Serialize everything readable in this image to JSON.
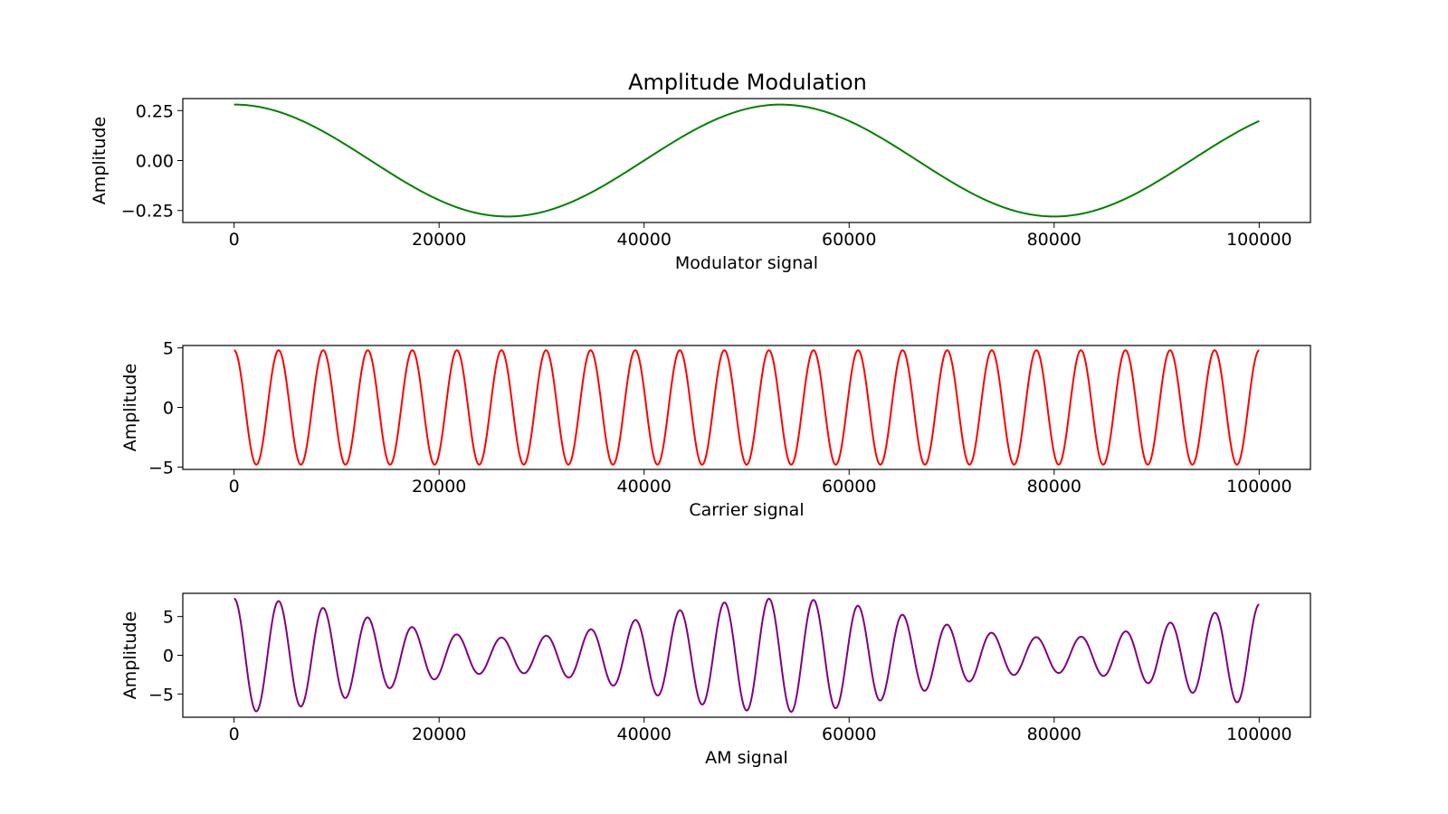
{
  "figure": {
    "title": "Amplitude Modulation"
  },
  "chart_data": [
    {
      "type": "line",
      "xlabel": "Modulator signal",
      "ylabel": "Amplitude",
      "xlim": [
        -5000,
        105000
      ],
      "ylim": [
        -0.31,
        0.31
      ],
      "xticks": [
        0,
        20000,
        40000,
        60000,
        80000,
        100000
      ],
      "xtick_labels": [
        "0",
        "20000",
        "40000",
        "60000",
        "80000",
        "100000"
      ],
      "yticks": [
        0.25,
        0.0,
        -0.25
      ],
      "ytick_labels": [
        "0.25",
        "0.00",
        "−0.25"
      ],
      "color": "#008000",
      "grid": false,
      "series": [
        {
          "x_start": 0,
          "x_end": 100000,
          "amplitude": 0.28,
          "period": 53333,
          "phase": "cosine"
        }
      ]
    },
    {
      "type": "line",
      "xlabel": "Carrier signal",
      "ylabel": "Amplitude",
      "xlim": [
        -5000,
        105000
      ],
      "ylim": [
        -5.2,
        5.2
      ],
      "xticks": [
        0,
        20000,
        40000,
        60000,
        80000,
        100000
      ],
      "xtick_labels": [
        "0",
        "20000",
        "40000",
        "60000",
        "80000",
        "100000"
      ],
      "yticks": [
        5,
        0,
        -5
      ],
      "ytick_labels": [
        "5",
        "0",
        "−5"
      ],
      "color": "#ff0000",
      "grid": false,
      "series": [
        {
          "x_start": 0,
          "x_end": 100000,
          "amplitude": 4.8,
          "period": 4348,
          "phase": "cosine"
        }
      ]
    },
    {
      "type": "line",
      "xlabel": "AM signal",
      "ylabel": "Amplitude",
      "xlim": [
        -5000,
        105000
      ],
      "ylim": [
        -8.0,
        8.0
      ],
      "xticks": [
        0,
        20000,
        40000,
        60000,
        80000,
        100000
      ],
      "xtick_labels": [
        "0",
        "20000",
        "40000",
        "60000",
        "80000",
        "100000"
      ],
      "yticks": [
        5,
        0,
        -5
      ],
      "ytick_labels": [
        "5",
        "0",
        "−5"
      ],
      "color": "#800080",
      "grid": false,
      "series": [
        {
          "x_start": 0,
          "x_end": 100000,
          "carrier_amplitude": 4.8,
          "carrier_period": 4348,
          "modulator_amplitude": 0.28,
          "modulator_period": 53333,
          "modulation_scale": 9.0,
          "formula": "(carrier_amplitude + modulation_scale*modulator) * cos(carrier)"
        }
      ]
    }
  ]
}
